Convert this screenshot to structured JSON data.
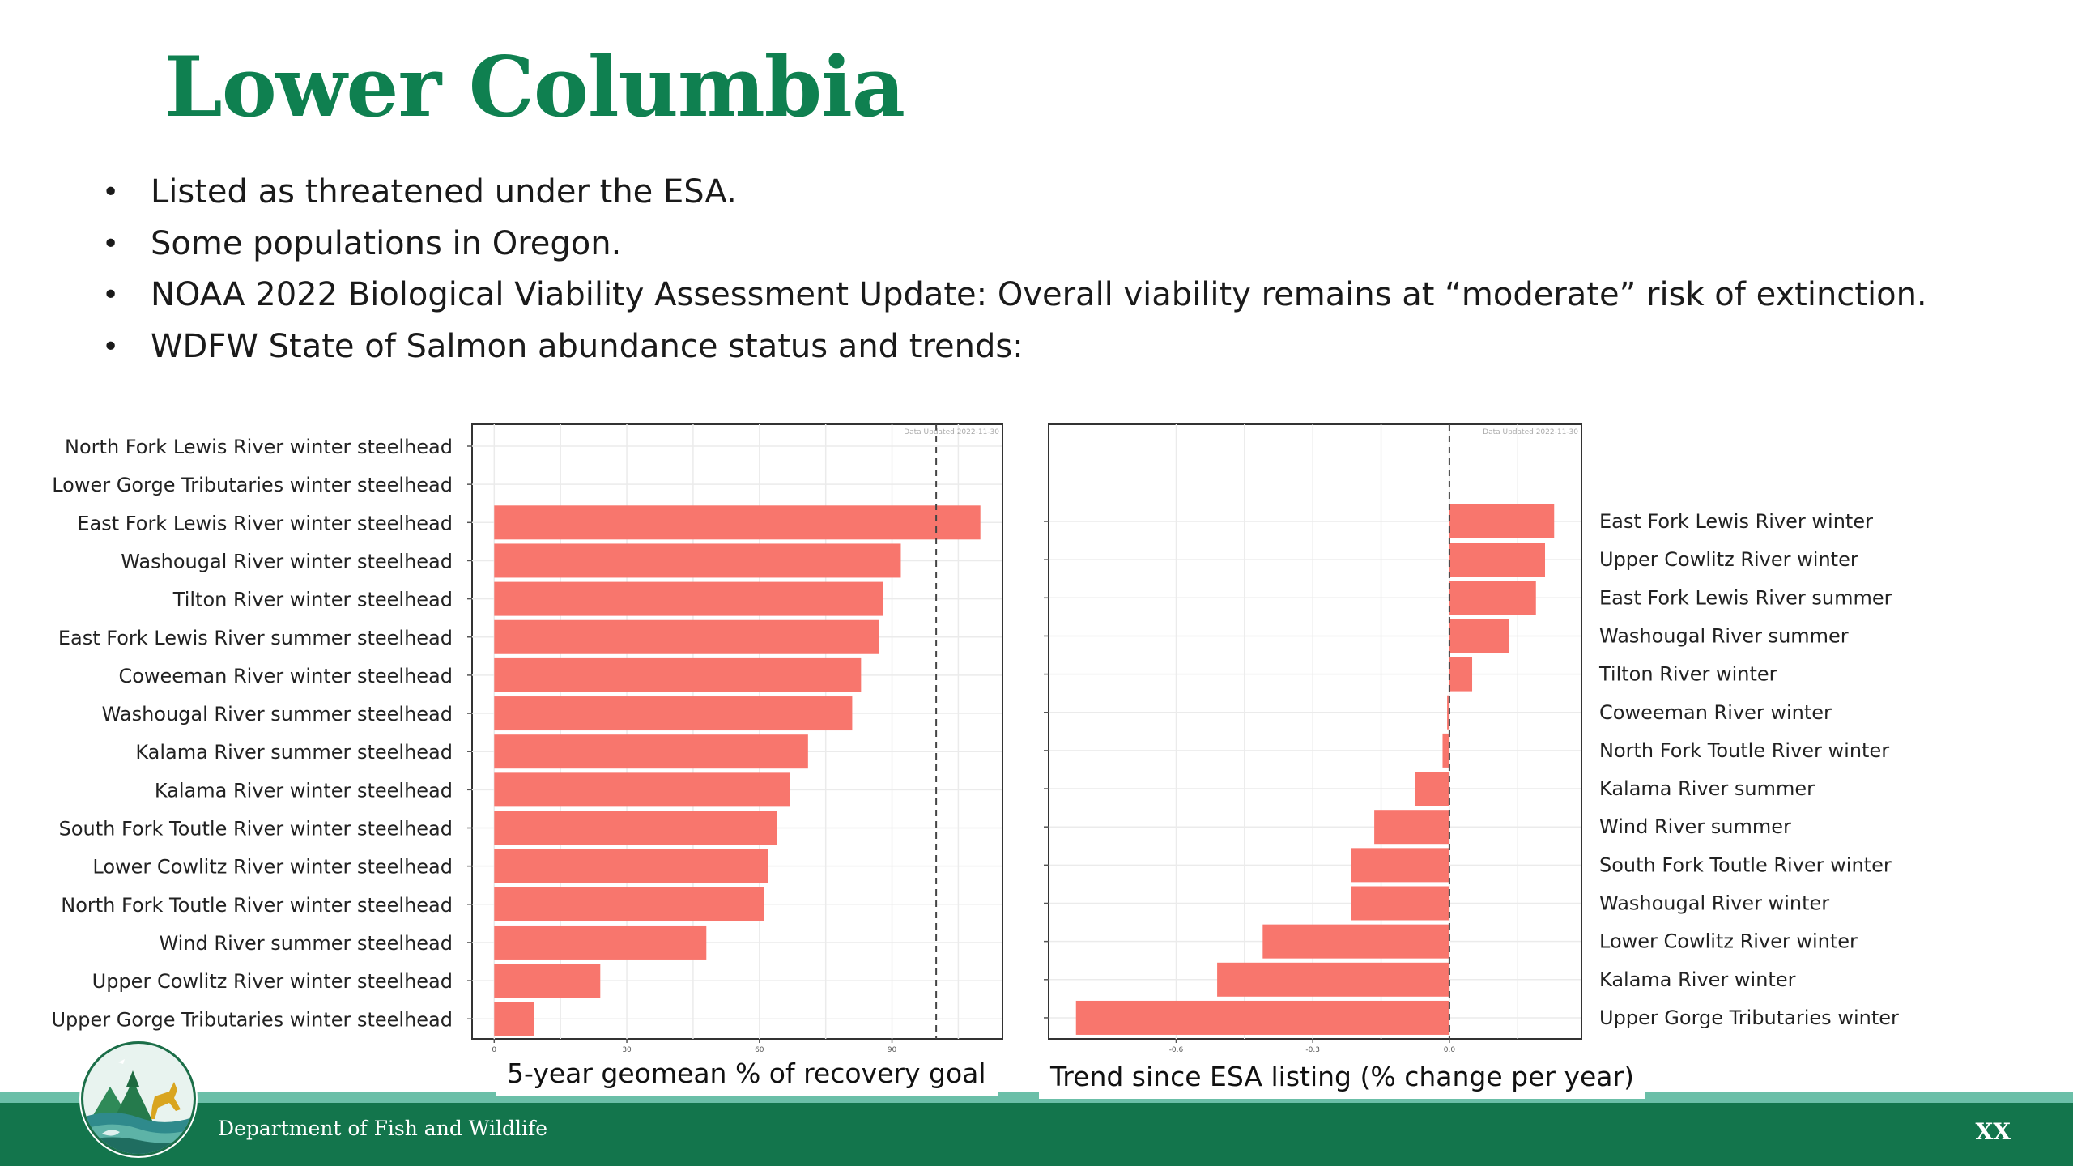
{
  "slide": {
    "title": "Lower Columbia",
    "bullets": [
      "Listed as threatened under the ESA.",
      "Some populations in Oregon.",
      "NOAA 2022 Biological Viability Assessment Update: Overall viability remains at “moderate” risk of extinction.",
      "WDFW State of Salmon abundance status and trends:"
    ],
    "footer_org": "Department of Fish and Wildlife",
    "page_number": "XX"
  },
  "colors": {
    "title_green": "#0f8050",
    "bar_fill": "#f8766d",
    "footer_green": "#13754c",
    "footer_light": "#6bbfa8"
  },
  "chart_data": [
    {
      "type": "bar",
      "orientation": "horizontal",
      "xlabel": "5-year geomean % of recovery goal",
      "stamp": "Data Updated 2022-11-30",
      "xlim": [
        -5,
        115
      ],
      "xticks": [
        0,
        30,
        60,
        90
      ],
      "reference_line": 100,
      "categories": [
        "North Fork Lewis River winter steelhead",
        "Lower Gorge Tributaries winter steelhead",
        "East Fork Lewis River winter steelhead",
        "Washougal River winter steelhead",
        "Tilton River winter steelhead",
        "East Fork Lewis River summer steelhead",
        "Coweeman River winter steelhead",
        "Washougal River summer steelhead",
        "Kalama River summer steelhead",
        "Kalama River winter steelhead",
        "South Fork Toutle River winter steelhead",
        "Lower Cowlitz River winter steelhead",
        "North Fork Toutle River winter steelhead",
        "Wind River summer steelhead",
        "Upper Cowlitz River winter steelhead",
        "Upper Gorge Tributaries winter steelhead"
      ],
      "values": [
        null,
        null,
        110,
        92,
        88,
        87,
        83,
        81,
        71,
        67,
        64,
        62,
        61,
        48,
        24,
        9
      ],
      "grid": true
    },
    {
      "type": "bar",
      "orientation": "horizontal",
      "xlabel": "Trend since ESA listing (% change per year)",
      "stamp": "Data Updated 2022-11-30",
      "xlim": [
        -0.88,
        0.29
      ],
      "xticks": [
        -0.6,
        -0.3,
        0.0
      ],
      "xtick_labels": [
        "-0.6",
        "-0.3",
        "0.0"
      ],
      "reference_line": 0,
      "categories": [
        "East Fork Lewis River winter",
        "Upper Cowlitz River winter",
        "East Fork Lewis River summer",
        "Washougal River summer",
        "Tilton River winter",
        "Coweeman River winter",
        "North Fork Toutle River winter",
        "Kalama River summer",
        "Wind River summer",
        "South Fork Toutle River winter",
        "Washougal River winter",
        "Lower Cowlitz River winter",
        "Kalama River winter",
        "Upper Gorge Tributaries winter"
      ],
      "values": [
        0.23,
        0.21,
        0.19,
        0.13,
        0.05,
        -0.005,
        -0.015,
        -0.075,
        -0.165,
        -0.215,
        -0.215,
        -0.41,
        -0.51,
        -0.82
      ],
      "grid": true
    }
  ]
}
